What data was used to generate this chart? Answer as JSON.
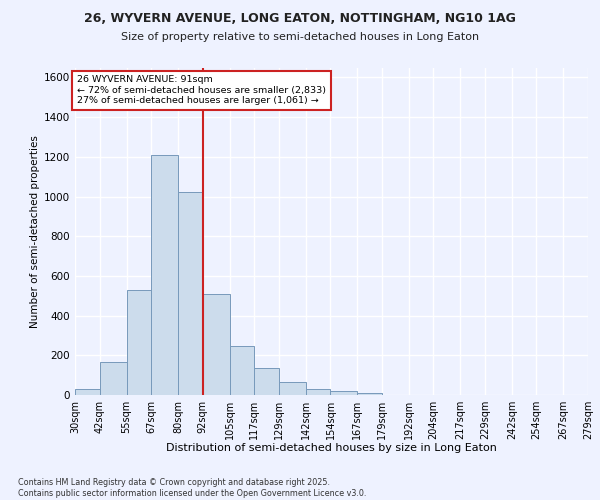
{
  "title_line1": "26, WYVERN AVENUE, LONG EATON, NOTTINGHAM, NG10 1AG",
  "title_line2": "Size of property relative to semi-detached houses in Long Eaton",
  "xlabel": "Distribution of semi-detached houses by size in Long Eaton",
  "ylabel": "Number of semi-detached properties",
  "footer_line1": "Contains HM Land Registry data © Crown copyright and database right 2025.",
  "footer_line2": "Contains public sector information licensed under the Open Government Licence v3.0.",
  "annotation_line1": "26 WYVERN AVENUE: 91sqm",
  "annotation_line2": "← 72% of semi-detached houses are smaller (2,833)",
  "annotation_line3": "27% of semi-detached houses are larger (1,061) →",
  "bin_edges": [
    30,
    42,
    55,
    67,
    80,
    92,
    105,
    117,
    129,
    142,
    154,
    167,
    179,
    192,
    204,
    217,
    229,
    242,
    254,
    267,
    279
  ],
  "bin_counts": [
    30,
    165,
    530,
    1210,
    1025,
    510,
    245,
    135,
    65,
    30,
    20,
    10,
    0,
    0,
    0,
    0,
    0,
    0,
    0,
    0
  ],
  "bar_color": "#ccdcec",
  "bar_edge_color": "#7799bb",
  "vline_x": 92,
  "vline_color": "#cc2222",
  "ylim": [
    0,
    1650
  ],
  "yticks": [
    0,
    200,
    400,
    600,
    800,
    1000,
    1200,
    1400,
    1600
  ],
  "bg_color": "#eef2ff",
  "grid_color": "#ffffff",
  "annotation_box_color": "#ffffff",
  "annotation_box_edge": "#cc2222"
}
